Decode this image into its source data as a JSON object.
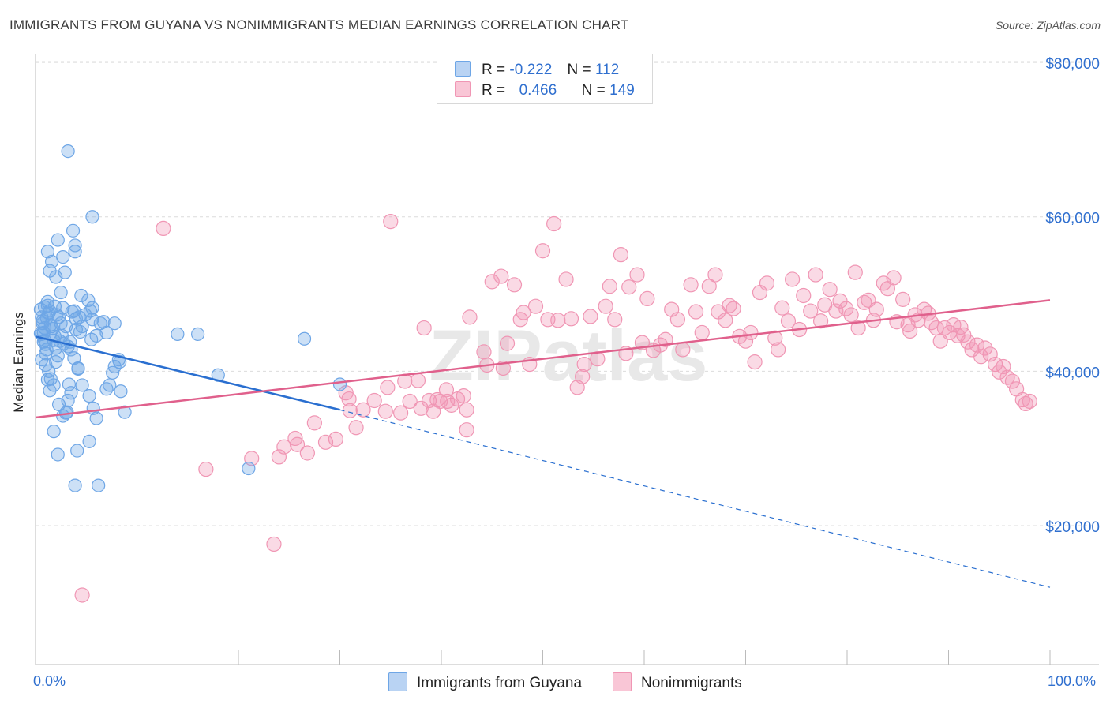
{
  "title": "IMMIGRANTS FROM GUYANA VS NONIMMIGRANTS MEDIAN EARNINGS CORRELATION CHART",
  "source": "Source: ZipAtlas.com",
  "watermark": "ZIPatlas",
  "legend": {
    "series1": {
      "r_label": "R =",
      "r_value": "-0.222",
      "n_label": "N =",
      "n_value": "112"
    },
    "series2": {
      "r_label": "R =",
      "r_value": "0.466",
      "n_label": "N =",
      "n_value": "149"
    }
  },
  "chart_data": {
    "type": "scatter",
    "title": "IMMIGRANTS FROM GUYANA VS NONIMMIGRANTS MEDIAN EARNINGS CORRELATION CHART",
    "xlabel": "",
    "ylabel": "Median Earnings",
    "xlim": [
      0,
      100
    ],
    "ylim": [
      2000,
      84000
    ],
    "x_tick_labels": [
      "0.0%",
      "100.0%"
    ],
    "y_ticks": [
      20000,
      40000,
      60000,
      80000
    ],
    "y_tick_labels": [
      "$20,000",
      "$40,000",
      "$60,000",
      "$80,000"
    ],
    "colors": {
      "series1": "#6ea6e6",
      "series2": "#f096b4",
      "line1": "#2a6fd0",
      "line2": "#e0608c",
      "axis_text": "#2f6fcf"
    },
    "series": [
      {
        "name": "Immigrants from Guyana",
        "trend": {
          "x": [
            0,
            30
          ],
          "y": [
            44500,
            35000
          ],
          "dashed_to": [
            100,
            12000
          ]
        },
        "points": [
          [
            0.5,
            48000
          ],
          [
            0.6,
            47000
          ],
          [
            0.7,
            46500
          ],
          [
            0.8,
            45000
          ],
          [
            0.9,
            44000
          ],
          [
            1.0,
            43500
          ],
          [
            1.1,
            42800
          ],
          [
            1.2,
            48500
          ],
          [
            1.3,
            47500
          ],
          [
            1.5,
            46000
          ],
          [
            1.7,
            45500
          ],
          [
            1.9,
            44500
          ],
          [
            2.0,
            43000
          ],
          [
            2.2,
            42000
          ],
          [
            0.6,
            44800
          ],
          [
            0.8,
            43800
          ],
          [
            1.0,
            42300
          ],
          [
            1.2,
            49000
          ],
          [
            1.4,
            47800
          ],
          [
            1.6,
            45800
          ],
          [
            2.3,
            47000
          ],
          [
            2.5,
            46200
          ],
          [
            2.7,
            48200
          ],
          [
            3.0,
            45800
          ],
          [
            3.2,
            43200
          ],
          [
            3.5,
            42800
          ],
          [
            3.8,
            47800
          ],
          [
            4.0,
            46800
          ],
          [
            4.3,
            47000
          ],
          [
            4.6,
            45800
          ],
          [
            1.2,
            55500
          ],
          [
            1.4,
            53000
          ],
          [
            1.6,
            54200
          ],
          [
            2.0,
            52200
          ],
          [
            2.2,
            57000
          ],
          [
            2.5,
            50200
          ],
          [
            2.7,
            54800
          ],
          [
            2.9,
            52800
          ],
          [
            3.7,
            58200
          ],
          [
            3.9,
            56300
          ],
          [
            3.9,
            55500
          ],
          [
            4.5,
            49800
          ],
          [
            5.2,
            49200
          ],
          [
            5.4,
            47800
          ],
          [
            5.6,
            46700
          ],
          [
            5.6,
            48200
          ],
          [
            1.3,
            40000
          ],
          [
            1.5,
            39000
          ],
          [
            1.8,
            38200
          ],
          [
            2.3,
            35700
          ],
          [
            2.7,
            34200
          ],
          [
            3.1,
            34700
          ],
          [
            3.2,
            36200
          ],
          [
            3.3,
            38300
          ],
          [
            3.5,
            37200
          ],
          [
            3.8,
            41700
          ],
          [
            4.2,
            40400
          ],
          [
            4.2,
            40300
          ],
          [
            4.6,
            38200
          ],
          [
            5.3,
            36800
          ],
          [
            5.7,
            35200
          ],
          [
            6.0,
            33900
          ],
          [
            6.4,
            46200
          ],
          [
            7.0,
            37700
          ],
          [
            7.3,
            38200
          ],
          [
            7.6,
            39800
          ],
          [
            7.8,
            40600
          ],
          [
            8.3,
            41200
          ],
          [
            8.4,
            37400
          ],
          [
            8.8,
            34700
          ],
          [
            1.8,
            32200
          ],
          [
            2.2,
            29200
          ],
          [
            3.0,
            34600
          ],
          [
            4.1,
            29700
          ],
          [
            5.3,
            30900
          ],
          [
            3.9,
            25200
          ],
          [
            6.2,
            25200
          ],
          [
            3.2,
            68500
          ],
          [
            5.6,
            60000
          ],
          [
            7.0,
            45000
          ],
          [
            7.8,
            46200
          ],
          [
            6.0,
            44600
          ],
          [
            8.2,
            41500
          ],
          [
            14.0,
            44800
          ],
          [
            16.0,
            44800
          ],
          [
            18.0,
            39500
          ],
          [
            21.0,
            27400
          ],
          [
            26.5,
            44200
          ],
          [
            30.0,
            38300
          ],
          [
            0.6,
            41500
          ],
          [
            1.0,
            40800
          ],
          [
            1.2,
            38900
          ],
          [
            1.4,
            37500
          ],
          [
            2.0,
            41200
          ],
          [
            0.9,
            45600
          ],
          [
            0.7,
            46200
          ],
          [
            1.1,
            46900
          ],
          [
            1.9,
            48400
          ],
          [
            2.1,
            47300
          ],
          [
            2.4,
            43900
          ],
          [
            2.8,
            43600
          ],
          [
            3.4,
            43800
          ],
          [
            4.0,
            45400
          ],
          [
            4.9,
            47300
          ],
          [
            5.5,
            44100
          ],
          [
            6.7,
            46400
          ],
          [
            1.8,
            44000
          ],
          [
            0.5,
            44900
          ],
          [
            2.6,
            44600
          ],
          [
            3.6,
            47700
          ],
          [
            0.9,
            48300
          ],
          [
            4.4,
            45100
          ]
        ]
      },
      {
        "name": "Nonimmigrants",
        "trend": {
          "x": [
            0,
            100
          ],
          "y": [
            34000,
            49200
          ]
        },
        "points": [
          [
            4.6,
            11000
          ],
          [
            12.6,
            58500
          ],
          [
            16.8,
            27300
          ],
          [
            21.3,
            28700
          ],
          [
            23.5,
            17600
          ],
          [
            24.0,
            28900
          ],
          [
            24.5,
            30200
          ],
          [
            25.6,
            31300
          ],
          [
            25.8,
            30500
          ],
          [
            26.8,
            29400
          ],
          [
            27.5,
            33300
          ],
          [
            28.6,
            30800
          ],
          [
            29.6,
            31200
          ],
          [
            30.6,
            37200
          ],
          [
            30.9,
            36400
          ],
          [
            31.0,
            34900
          ],
          [
            31.6,
            32700
          ],
          [
            32.3,
            35000
          ],
          [
            33.4,
            36200
          ],
          [
            34.5,
            34800
          ],
          [
            34.7,
            37900
          ],
          [
            35.0,
            59400
          ],
          [
            36.0,
            34600
          ],
          [
            36.4,
            38700
          ],
          [
            36.9,
            36100
          ],
          [
            37.7,
            38800
          ],
          [
            38.0,
            35200
          ],
          [
            38.3,
            45600
          ],
          [
            38.8,
            36200
          ],
          [
            39.2,
            34800
          ],
          [
            39.6,
            36300
          ],
          [
            39.9,
            36100
          ],
          [
            40.5,
            37600
          ],
          [
            40.6,
            36100
          ],
          [
            41.0,
            35600
          ],
          [
            41.6,
            36400
          ],
          [
            42.2,
            36800
          ],
          [
            42.5,
            32400
          ],
          [
            42.5,
            35000
          ],
          [
            42.8,
            47000
          ],
          [
            44.2,
            42500
          ],
          [
            44.5,
            40800
          ],
          [
            45.0,
            51600
          ],
          [
            45.9,
            52300
          ],
          [
            46.1,
            40400
          ],
          [
            46.5,
            43600
          ],
          [
            47.2,
            51200
          ],
          [
            47.8,
            46700
          ],
          [
            48.1,
            47600
          ],
          [
            48.7,
            40900
          ],
          [
            49.3,
            48400
          ],
          [
            50.0,
            55600
          ],
          [
            50.5,
            46700
          ],
          [
            51.1,
            59100
          ],
          [
            51.5,
            46600
          ],
          [
            52.3,
            51900
          ],
          [
            52.8,
            46800
          ],
          [
            53.4,
            37900
          ],
          [
            53.9,
            39300
          ],
          [
            54.1,
            40900
          ],
          [
            54.7,
            47100
          ],
          [
            55.4,
            41600
          ],
          [
            56.2,
            48400
          ],
          [
            56.6,
            51000
          ],
          [
            57.1,
            46700
          ],
          [
            57.7,
            55100
          ],
          [
            58.2,
            42300
          ],
          [
            58.5,
            50900
          ],
          [
            59.3,
            52500
          ],
          [
            59.8,
            43700
          ],
          [
            60.3,
            49400
          ],
          [
            60.9,
            42700
          ],
          [
            61.6,
            43400
          ],
          [
            62.1,
            44100
          ],
          [
            62.7,
            48000
          ],
          [
            63.3,
            46700
          ],
          [
            63.8,
            42800
          ],
          [
            64.6,
            51200
          ],
          [
            65.1,
            47700
          ],
          [
            65.7,
            45000
          ],
          [
            66.4,
            51000
          ],
          [
            67.0,
            52500
          ],
          [
            67.3,
            47700
          ],
          [
            68.0,
            46600
          ],
          [
            68.4,
            48500
          ],
          [
            68.8,
            48100
          ],
          [
            69.4,
            44500
          ],
          [
            70.0,
            43900
          ],
          [
            70.5,
            45000
          ],
          [
            70.9,
            41200
          ],
          [
            71.4,
            50200
          ],
          [
            72.1,
            51400
          ],
          [
            72.9,
            44300
          ],
          [
            73.2,
            42800
          ],
          [
            73.6,
            48200
          ],
          [
            74.2,
            46500
          ],
          [
            74.6,
            51900
          ],
          [
            75.3,
            45400
          ],
          [
            75.7,
            49800
          ],
          [
            76.4,
            47800
          ],
          [
            76.9,
            52500
          ],
          [
            77.4,
            46500
          ],
          [
            77.8,
            48600
          ],
          [
            78.3,
            50600
          ],
          [
            78.9,
            47800
          ],
          [
            79.3,
            49100
          ],
          [
            79.9,
            48100
          ],
          [
            80.4,
            47300
          ],
          [
            80.8,
            52800
          ],
          [
            81.1,
            45600
          ],
          [
            81.7,
            48900
          ],
          [
            82.1,
            49200
          ],
          [
            82.6,
            46600
          ],
          [
            82.9,
            48000
          ],
          [
            83.6,
            51400
          ],
          [
            84.0,
            50700
          ],
          [
            84.6,
            52100
          ],
          [
            84.9,
            46400
          ],
          [
            85.5,
            49300
          ],
          [
            86.0,
            46000
          ],
          [
            86.2,
            45200
          ],
          [
            86.7,
            47300
          ],
          [
            87.0,
            46600
          ],
          [
            87.6,
            48000
          ],
          [
            88.0,
            47500
          ],
          [
            88.3,
            46300
          ],
          [
            88.8,
            45600
          ],
          [
            89.2,
            43900
          ],
          [
            89.6,
            45600
          ],
          [
            90.1,
            45000
          ],
          [
            90.5,
            46000
          ],
          [
            90.9,
            44600
          ],
          [
            91.2,
            45700
          ],
          [
            91.5,
            44700
          ],
          [
            91.9,
            43800
          ],
          [
            92.3,
            42800
          ],
          [
            92.8,
            43400
          ],
          [
            93.2,
            41900
          ],
          [
            93.6,
            43000
          ],
          [
            94.1,
            42200
          ],
          [
            94.6,
            40900
          ],
          [
            95.0,
            39900
          ],
          [
            95.4,
            40600
          ],
          [
            95.8,
            39200
          ],
          [
            96.3,
            38700
          ],
          [
            96.7,
            37700
          ],
          [
            97.3,
            36300
          ],
          [
            97.6,
            35800
          ],
          [
            98.0,
            36100
          ]
        ]
      }
    ]
  },
  "bottom_legend": {
    "series1": "Immigrants from Guyana",
    "series2": "Nonimmigrants"
  }
}
